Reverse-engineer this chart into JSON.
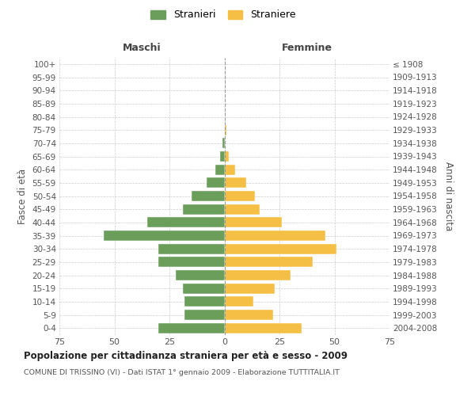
{
  "age_groups": [
    "0-4",
    "5-9",
    "10-14",
    "15-19",
    "20-24",
    "25-29",
    "30-34",
    "35-39",
    "40-44",
    "45-49",
    "50-54",
    "55-59",
    "60-64",
    "65-69",
    "70-74",
    "75-79",
    "80-84",
    "85-89",
    "90-94",
    "95-99",
    "100+"
  ],
  "birth_years": [
    "2004-2008",
    "1999-2003",
    "1994-1998",
    "1989-1993",
    "1984-1988",
    "1979-1983",
    "1974-1978",
    "1969-1973",
    "1964-1968",
    "1959-1963",
    "1954-1958",
    "1949-1953",
    "1944-1948",
    "1939-1943",
    "1934-1938",
    "1929-1933",
    "1924-1928",
    "1919-1923",
    "1914-1918",
    "1909-1913",
    "≤ 1908"
  ],
  "males": [
    30,
    18,
    18,
    19,
    22,
    30,
    30,
    55,
    35,
    19,
    15,
    8,
    4,
    2,
    1,
    0,
    0,
    0,
    0,
    0,
    0
  ],
  "females": [
    35,
    22,
    13,
    23,
    30,
    40,
    51,
    46,
    26,
    16,
    14,
    10,
    5,
    2,
    0,
    1,
    0,
    0,
    0,
    0,
    0
  ],
  "male_color": "#6a9e5a",
  "female_color": "#f5bf45",
  "background_color": "#ffffff",
  "grid_color": "#cccccc",
  "bar_edge_color": "#ffffff",
  "title": "Popolazione per cittadinanza straniera per età e sesso - 2009",
  "subtitle": "COMUNE DI TRISSINO (VI) - Dati ISTAT 1° gennaio 2009 - Elaborazione TUTTITALIA.IT",
  "ylabel_left": "Fasce di età",
  "ylabel_right": "Anni di nascita",
  "label_maschi": "Maschi",
  "label_femmine": "Femmine",
  "legend_stranieri": "Stranieri",
  "legend_straniere": "Straniere",
  "xlim": 75
}
